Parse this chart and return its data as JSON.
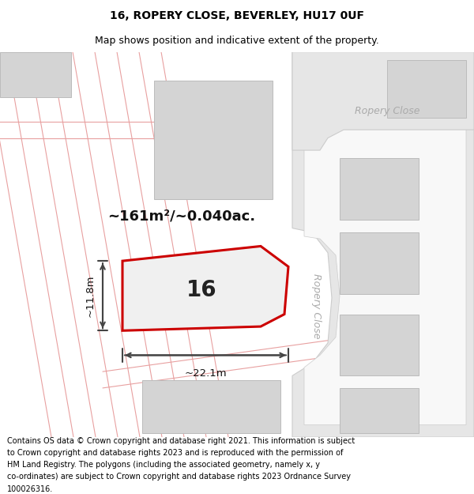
{
  "title_line1": "16, ROPERY CLOSE, BEVERLEY, HU17 0UF",
  "title_line2": "Map shows position and indicative extent of the property.",
  "footer_text": "Contains OS data © Crown copyright and database right 2021. This information is subject to Crown copyright and database rights 2023 and is reproduced with the permission of HM Land Registry. The polygons (including the associated geometry, namely x, y co-ordinates) are subject to Crown copyright and database rights 2023 Ordnance Survey 100026316.",
  "bg_color": "#ffffff",
  "map_bg_color": "#f8f8f8",
  "road_fill": "#e6e6e6",
  "road_outline": "#cccccc",
  "building_fill": "#d4d4d4",
  "building_outline": "#bbbbbb",
  "red_line_color": "#cc0000",
  "pink_line_color": "#e8a0a0",
  "dim_line_color": "#444444",
  "street_label_color": "#aaaaaa",
  "area_label": "~161m²/~0.040ac.",
  "width_label": "~22.1m",
  "height_label": "~11.8m",
  "plot_number": "16",
  "title_fontsize": 10,
  "subtitle_fontsize": 9,
  "footer_fontsize": 7,
  "label_fontsize": 13
}
